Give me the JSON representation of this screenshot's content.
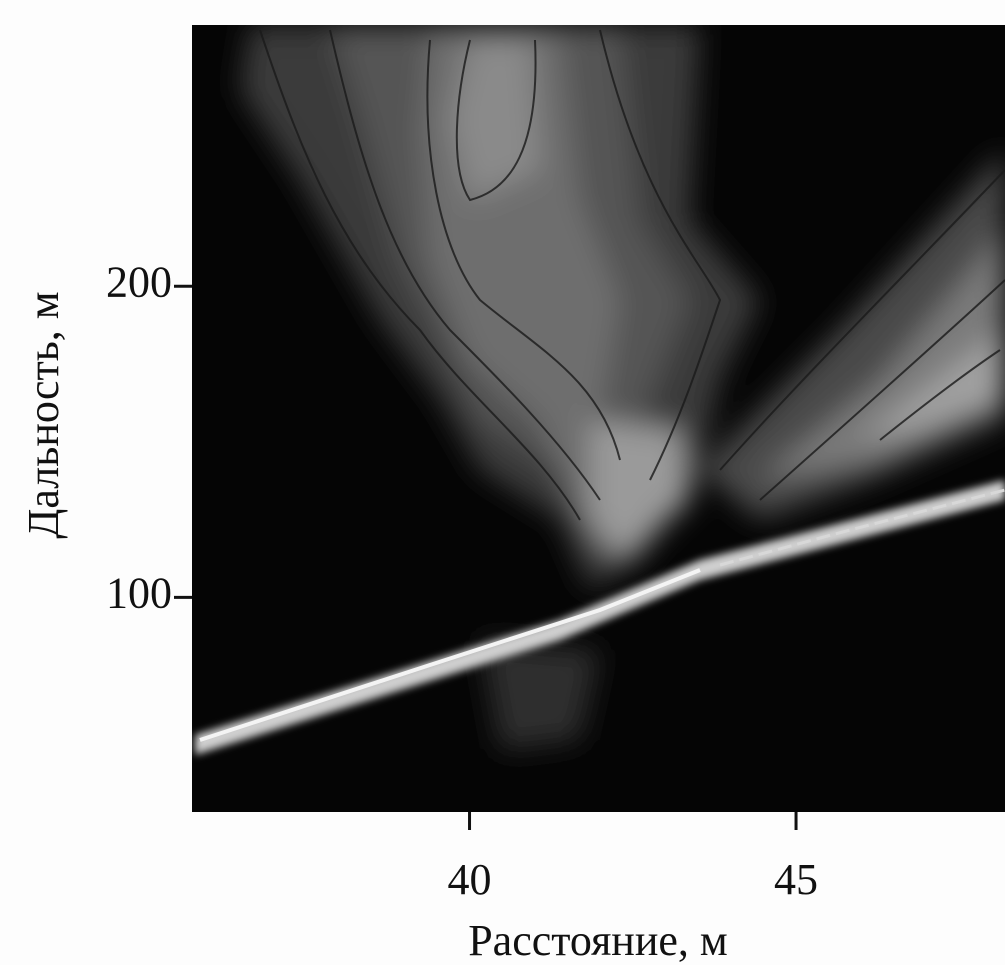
{
  "chart_data": {
    "type": "contour",
    "xlabel": "Расстояние, м",
    "ylabel": "Дальность, м",
    "xlim": [
      35.75,
      48.2
    ],
    "ylim": [
      31,
      284
    ],
    "xticks": [
      40,
      45
    ],
    "yticks": [
      100,
      200
    ]
  }
}
